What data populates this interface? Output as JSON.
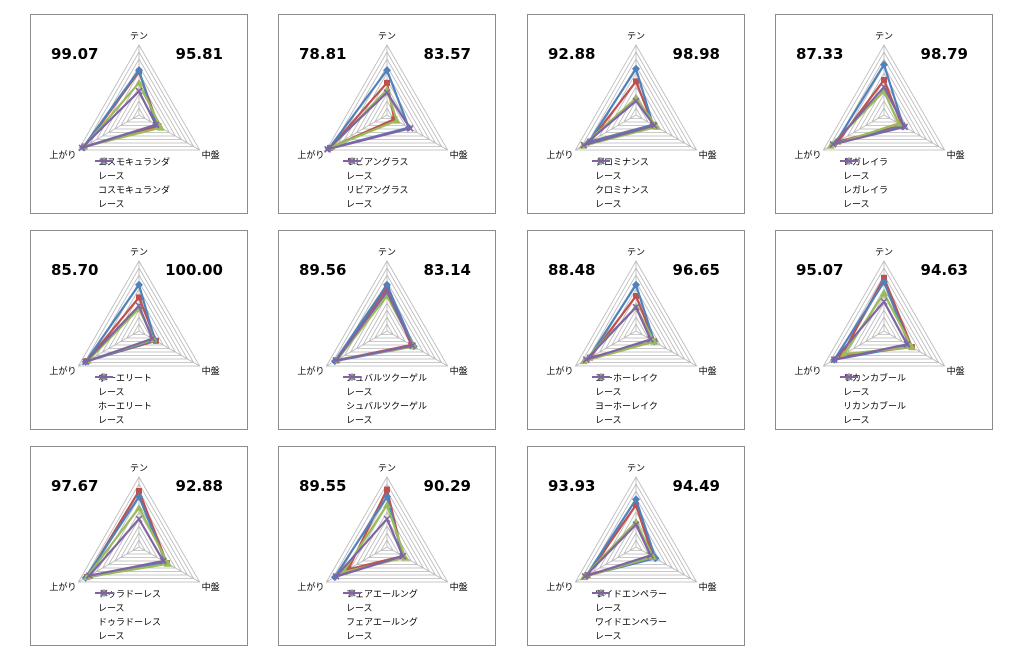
{
  "axes": [
    "テン",
    "中盤",
    "上がり"
  ],
  "race_label": "レース",
  "colors": {
    "horse": "#c0504d",
    "race": "#4f81bd",
    "horse2": "#9bbb59",
    "race2": "#8064a2"
  },
  "chart_data": [
    {
      "type": "radar",
      "horse": "コスモキュランダ",
      "left_value": "99.07",
      "right_value": "95.81",
      "categories": [
        "テン",
        "中盤",
        "上がり"
      ],
      "range": [
        0,
        10
      ],
      "series": [
        {
          "name": "コスモキュランダ",
          "values": [
            6.2,
            3.2,
            9.0
          ]
        },
        {
          "name": "レース",
          "values": [
            6.4,
            2.8,
            9.2
          ]
        },
        {
          "name": "コスモキュランダ",
          "values": [
            4.6,
            3.6,
            9.1
          ]
        },
        {
          "name": "レース",
          "values": [
            3.4,
            2.8,
            9.4
          ]
        }
      ]
    },
    {
      "type": "radar",
      "horse": "リビアングラス",
      "left_value": "78.81",
      "right_value": "83.57",
      "categories": [
        "テン",
        "中盤",
        "上がり"
      ],
      "range": [
        0,
        10
      ],
      "series": [
        {
          "name": "リビアングラス",
          "values": [
            4.6,
            1.2,
            9.4
          ]
        },
        {
          "name": "レース",
          "values": [
            6.4,
            3.6,
            9.6
          ]
        },
        {
          "name": "リビアングラス",
          "values": [
            3.6,
            1.6,
            9.2
          ]
        },
        {
          "name": "レース",
          "values": [
            3.2,
            3.8,
            9.8
          ]
        }
      ]
    },
    {
      "type": "radar",
      "horse": "クロミナンス",
      "left_value": "92.88",
      "right_value": "98.98",
      "categories": [
        "テン",
        "中盤",
        "上がり"
      ],
      "range": [
        0,
        10
      ],
      "series": [
        {
          "name": "クロミナンス",
          "values": [
            4.8,
            2.8,
            7.6
          ]
        },
        {
          "name": "レース",
          "values": [
            6.6,
            2.8,
            7.8
          ]
        },
        {
          "name": "クロミナンス",
          "values": [
            2.4,
            3.4,
            8.8
          ]
        },
        {
          "name": "レース",
          "values": [
            2.0,
            3.0,
            8.6
          ]
        }
      ]
    },
    {
      "type": "radar",
      "horse": "レガレイラ",
      "left_value": "87.33",
      "right_value": "98.79",
      "categories": [
        "テン",
        "中盤",
        "上がり"
      ],
      "range": [
        0,
        10
      ],
      "series": [
        {
          "name": "レガレイラ",
          "values": [
            5.0,
            3.0,
            7.6
          ]
        },
        {
          "name": "レース",
          "values": [
            7.2,
            3.2,
            8.0
          ]
        },
        {
          "name": "レガレイラ",
          "values": [
            3.4,
            2.4,
            8.8
          ]
        },
        {
          "name": "レース",
          "values": [
            4.0,
            3.4,
            8.4
          ]
        }
      ]
    },
    {
      "type": "radar",
      "horse": "ホーエリート",
      "left_value": "85.70",
      "right_value": "100.00",
      "categories": [
        "テン",
        "中盤",
        "上がり"
      ],
      "range": [
        0,
        10
      ],
      "series": [
        {
          "name": "ホーエリート",
          "values": [
            4.8,
            2.8,
            8.6
          ]
        },
        {
          "name": "レース",
          "values": [
            6.6,
            2.6,
            8.8
          ]
        },
        {
          "name": "ホーエリート",
          "values": [
            3.2,
            2.4,
            8.4
          ]
        },
        {
          "name": "レース",
          "values": [
            3.6,
            2.2,
            8.8
          ]
        }
      ]
    },
    {
      "type": "radar",
      "horse": "シュバルツクーゲル",
      "left_value": "89.56",
      "right_value": "83.14",
      "categories": [
        "テン",
        "中盤",
        "上がり"
      ],
      "range": [
        0,
        10
      ],
      "series": [
        {
          "name": "シュバルツクーゲル",
          "values": [
            6.2,
            4.0,
            8.4
          ]
        },
        {
          "name": "レース",
          "values": [
            6.6,
            4.4,
            8.6
          ]
        },
        {
          "name": "シュバルツクーゲル",
          "values": [
            5.0,
            4.4,
            8.2
          ]
        },
        {
          "name": "レース",
          "values": [
            5.6,
            4.2,
            8.4
          ]
        }
      ]
    },
    {
      "type": "radar",
      "horse": "ヨーホーレイク",
      "left_value": "88.48",
      "right_value": "96.65",
      "categories": [
        "テン",
        "中盤",
        "上がり"
      ],
      "range": [
        0,
        10
      ],
      "series": [
        {
          "name": "ヨーホーレイク",
          "values": [
            5.0,
            3.0,
            7.6
          ]
        },
        {
          "name": "レース",
          "values": [
            6.6,
            3.0,
            7.8
          ]
        },
        {
          "name": "ヨーホーレイク",
          "values": [
            3.4,
            3.0,
            8.6
          ]
        },
        {
          "name": "レース",
          "values": [
            3.4,
            2.4,
            8.2
          ]
        }
      ]
    },
    {
      "type": "radar",
      "horse": "リカンカブール",
      "left_value": "95.07",
      "right_value": "94.63",
      "categories": [
        "テン",
        "中盤",
        "上がり"
      ],
      "range": [
        0,
        10
      ],
      "series": [
        {
          "name": "リカンカブール",
          "values": [
            7.6,
            4.6,
            7.0
          ]
        },
        {
          "name": "レース",
          "values": [
            7.0,
            4.2,
            8.2
          ]
        },
        {
          "name": "リカンカブール",
          "values": [
            5.4,
            4.6,
            6.6
          ]
        },
        {
          "name": "レース",
          "values": [
            4.2,
            3.8,
            8.2
          ]
        }
      ]
    },
    {
      "type": "radar",
      "horse": "ドゥラドーレス",
      "left_value": "97.67",
      "right_value": "92.88",
      "categories": [
        "テン",
        "中盤",
        "上がり"
      ],
      "range": [
        0,
        10
      ],
      "series": [
        {
          "name": "ドゥラドーレス",
          "values": [
            8.0,
            4.6,
            8.6
          ]
        },
        {
          "name": "レース",
          "values": [
            7.2,
            4.4,
            8.8
          ]
        },
        {
          "name": "ドゥラドーレス",
          "values": [
            5.6,
            4.8,
            8.6
          ]
        },
        {
          "name": "レース",
          "values": [
            4.0,
            4.0,
            8.2
          ]
        }
      ]
    },
    {
      "type": "radar",
      "horse": "フェアエールング",
      "left_value": "89.55",
      "right_value": "90.29",
      "categories": [
        "テン",
        "中盤",
        "上がり"
      ],
      "range": [
        0,
        10
      ],
      "series": [
        {
          "name": "フェアエールング",
          "values": [
            8.2,
            2.6,
            6.4
          ]
        },
        {
          "name": "レース",
          "values": [
            7.2,
            2.6,
            8.6
          ]
        },
        {
          "name": "フェアエールング",
          "values": [
            6.0,
            3.0,
            7.2
          ]
        },
        {
          "name": "レース",
          "values": [
            4.0,
            2.6,
            8.4
          ]
        }
      ]
    },
    {
      "type": "radar",
      "horse": "ワイドエンペラー",
      "left_value": "93.93",
      "right_value": "94.49",
      "categories": [
        "テン",
        "中盤",
        "上がり"
      ],
      "range": [
        0,
        10
      ],
      "series": [
        {
          "name": "ワイドエンペラー",
          "values": [
            6.0,
            2.8,
            8.0
          ]
        },
        {
          "name": "レース",
          "values": [
            6.8,
            3.2,
            8.2
          ]
        },
        {
          "name": "ワイドエンペラー",
          "values": [
            3.6,
            2.8,
            8.6
          ]
        },
        {
          "name": "レース",
          "values": [
            3.2,
            2.4,
            8.4
          ]
        }
      ]
    }
  ]
}
